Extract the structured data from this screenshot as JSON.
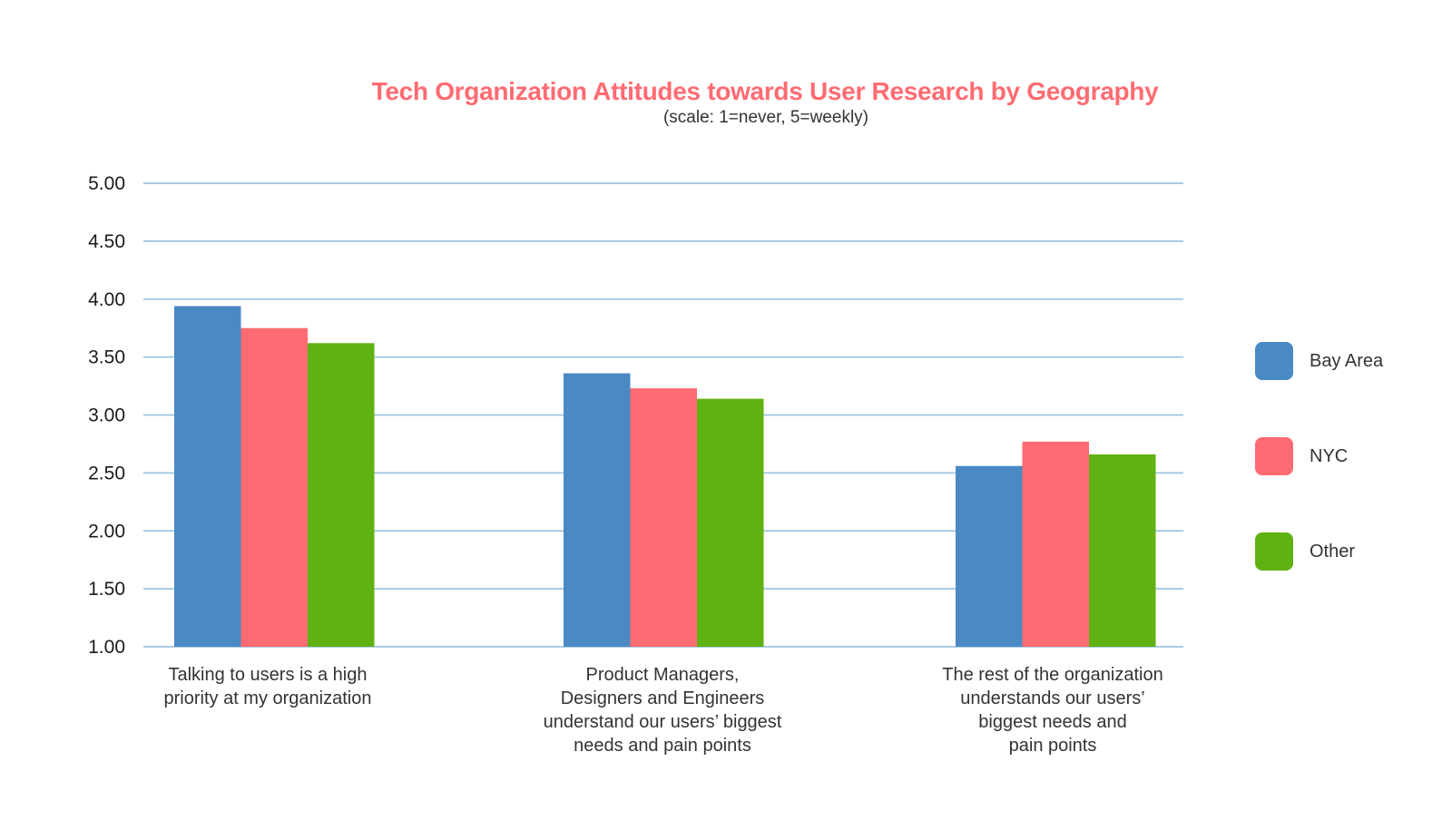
{
  "chart_data": {
    "type": "bar",
    "title": "Tech Organization Attitudes towards User Research by Geography",
    "subtitle": "(scale: 1=never, 5=weekly)",
    "xlabel": "",
    "ylabel": "",
    "ylim": [
      1.0,
      5.0
    ],
    "yticks": [
      "1.00",
      "1.50",
      "2.00",
      "2.50",
      "3.00",
      "3.50",
      "4.00",
      "4.50",
      "5.00"
    ],
    "ytick_values": [
      1.0,
      1.5,
      2.0,
      2.5,
      3.0,
      3.5,
      4.0,
      4.5,
      5.0
    ],
    "grid": true,
    "legend_position": "right",
    "categories": [
      [
        "Talking to users is a high",
        "priority at my organization"
      ],
      [
        "Product Managers,",
        "Designers and Engineers",
        "understand our users’ biggest",
        "needs and pain points"
      ],
      [
        "The rest of the organization",
        "understands our users’",
        "biggest needs and",
        "pain points"
      ]
    ],
    "series": [
      {
        "name": "Bay Area",
        "color": "#4A89C4",
        "values": [
          3.94,
          3.36,
          2.56
        ]
      },
      {
        "name": "NYC",
        "color": "#FF6B72",
        "values": [
          3.75,
          3.23,
          2.77
        ]
      },
      {
        "name": "Other",
        "color": "#5FB212",
        "values": [
          3.62,
          3.14,
          2.66
        ]
      }
    ]
  },
  "colors": {
    "title": "#FF6B72",
    "grid": "#9FC3DF"
  }
}
